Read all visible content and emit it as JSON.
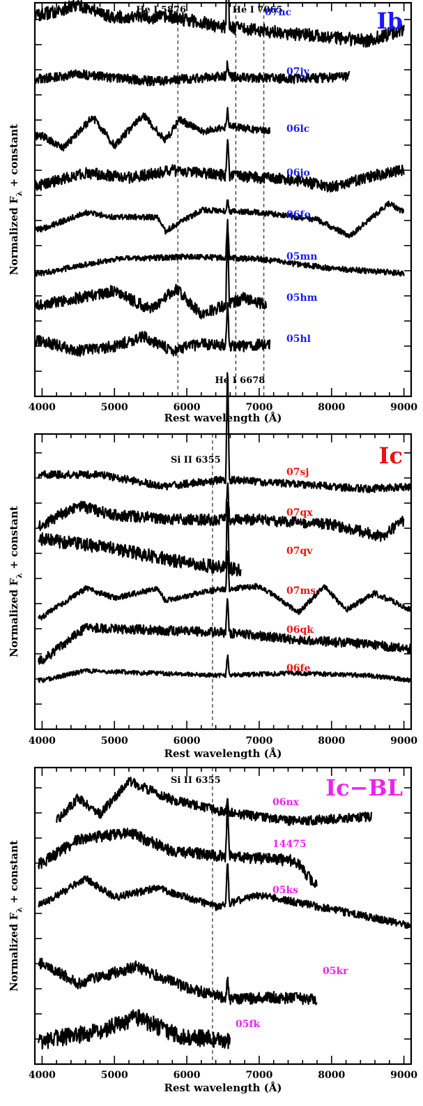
{
  "chart_data": [
    {
      "type": "line",
      "panel_label": "Ib",
      "label_color": "#1a1aff",
      "xlabel": "Rest wavelength (Å)",
      "ylabel_main": "Normalized F",
      "ylabel_sub": "λ",
      "ylabel_tail": " + constant",
      "xlim": [
        3900,
        9100
      ],
      "xticks": [
        "4000",
        "5000",
        "6000",
        "7000",
        "8000",
        "9000"
      ],
      "reference_lines": [
        {
          "label": "He I 5876",
          "wavelength": 5876,
          "label_pos": "top"
        },
        {
          "label": "He I 6678",
          "wavelength": 6678,
          "label_pos": "bottom"
        },
        {
          "label": "He I 7065",
          "wavelength": 7065,
          "label_pos": "top"
        }
      ],
      "series": [
        {
          "name": "07nc",
          "x_range": [
            3900,
            9000
          ],
          "level": 8.0,
          "noise": 0.35,
          "halpha": 4.2,
          "shape": [
            [
              4000,
              0.2
            ],
            [
              4500,
              0.6
            ],
            [
              5000,
              0.1
            ],
            [
              5800,
              0.1
            ],
            [
              6500,
              -0.3
            ],
            [
              7500,
              -0.6
            ],
            [
              8500,
              -0.9
            ],
            [
              9000,
              -0.4
            ]
          ]
        },
        {
          "name": "07jy",
          "x_range": [
            3900,
            8250
          ],
          "level": 7.0,
          "noise": 0.25,
          "halpha": 0.6,
          "shape": [
            [
              4000,
              0.0
            ],
            [
              4500,
              0.2
            ],
            [
              5500,
              -0.1
            ],
            [
              6500,
              0.1
            ],
            [
              7500,
              0.0
            ],
            [
              8250,
              0.1
            ]
          ]
        },
        {
          "name": "06lc",
          "x_range": [
            3900,
            7150
          ],
          "level": 6.1,
          "noise": 0.2,
          "halpha": 0.8,
          "shape": [
            [
              4000,
              0.0
            ],
            [
              4300,
              -0.5
            ],
            [
              4700,
              0.8
            ],
            [
              5000,
              -0.4
            ],
            [
              5400,
              0.9
            ],
            [
              5700,
              -0.2
            ],
            [
              5900,
              0.7
            ],
            [
              6200,
              0.2
            ],
            [
              6600,
              0.4
            ],
            [
              7150,
              0.2
            ]
          ]
        },
        {
          "name": "06jo",
          "x_range": [
            3900,
            9000
          ],
          "level": 5.2,
          "noise": 0.3,
          "halpha": 1.8,
          "shape": [
            [
              4000,
              -0.2
            ],
            [
              4600,
              0.3
            ],
            [
              5200,
              0.1
            ],
            [
              5800,
              0.4
            ],
            [
              6500,
              0.2
            ],
            [
              7500,
              0.0
            ],
            [
              8000,
              -0.3
            ],
            [
              8600,
              0.2
            ],
            [
              9000,
              0.4
            ]
          ]
        },
        {
          "name": "06fo",
          "x_range": [
            3900,
            9000
          ],
          "level": 4.2,
          "noise": 0.15,
          "halpha": 0.5,
          "shape": [
            [
              4000,
              -0.3
            ],
            [
              4600,
              0.4
            ],
            [
              5000,
              0.2
            ],
            [
              5600,
              0.2
            ],
            [
              5700,
              -0.4
            ],
            [
              6200,
              0.5
            ],
            [
              7000,
              0.4
            ],
            [
              7800,
              0.1
            ],
            [
              8250,
              -0.6
            ],
            [
              8800,
              0.8
            ],
            [
              9000,
              0.4
            ]
          ]
        },
        {
          "name": "05mn",
          "x_range": [
            3900,
            9000
          ],
          "level": 3.3,
          "noise": 0.15,
          "halpha": 1.6,
          "shape": [
            [
              4000,
              -0.4
            ],
            [
              5000,
              0.2
            ],
            [
              6000,
              0.3
            ],
            [
              7000,
              0.2
            ],
            [
              8000,
              -0.2
            ],
            [
              9000,
              -0.4
            ]
          ]
        },
        {
          "name": "05hm",
          "x_range": [
            3900,
            7100
          ],
          "level": 2.2,
          "noise": 0.3,
          "halpha": 3.5,
          "shape": [
            [
              4000,
              0.0
            ],
            [
              4500,
              0.3
            ],
            [
              5000,
              0.6
            ],
            [
              5500,
              -0.2
            ],
            [
              5850,
              0.7
            ],
            [
              6200,
              -0.4
            ],
            [
              6800,
              0.3
            ],
            [
              7100,
              0.0
            ]
          ]
        },
        {
          "name": "05hl",
          "x_range": [
            3900,
            7150
          ],
          "level": 1.0,
          "noise": 0.3,
          "halpha": 1.8,
          "shape": [
            [
              4000,
              0.2
            ],
            [
              4500,
              -0.2
            ],
            [
              5000,
              0.0
            ],
            [
              5400,
              0.4
            ],
            [
              5800,
              -0.2
            ],
            [
              6200,
              0.1
            ],
            [
              6800,
              0.0
            ],
            [
              7150,
              0.1
            ]
          ]
        }
      ]
    },
    {
      "type": "line",
      "panel_label": "Ic",
      "label_color": "#ee1111",
      "xlabel": "Rest wavelength (Å)",
      "ylabel_main": "Normalized F",
      "ylabel_sub": "λ",
      "ylabel_tail": " + constant",
      "xlim": [
        3900,
        9100
      ],
      "xticks": [
        "4000",
        "5000",
        "6000",
        "7000",
        "8000",
        "9000"
      ],
      "reference_lines": [
        {
          "label": "Si II 6355",
          "wavelength": 6355,
          "label_pos": "top"
        }
      ],
      "series": [
        {
          "name": "07sj",
          "x_range": [
            3950,
            9100
          ],
          "level": 6.6,
          "noise": 0.2,
          "halpha": 5.0,
          "shape": [
            [
              4000,
              0.2
            ],
            [
              4800,
              0.2
            ],
            [
              5700,
              -0.3
            ],
            [
              6500,
              0.0
            ],
            [
              7500,
              -0.2
            ],
            [
              8500,
              -0.4
            ],
            [
              9100,
              -0.3
            ]
          ]
        },
        {
          "name": "07qx",
          "x_range": [
            3950,
            9000
          ],
          "level": 5.6,
          "noise": 0.3,
          "halpha": 1.8,
          "shape": [
            [
              4000,
              -0.2
            ],
            [
              4500,
              0.6
            ],
            [
              5000,
              0.2
            ],
            [
              6000,
              0.0
            ],
            [
              7000,
              0.0
            ],
            [
              8000,
              -0.2
            ],
            [
              8700,
              -0.7
            ],
            [
              9000,
              0.0
            ]
          ]
        },
        {
          "name": "07qv",
          "x_range": [
            3950,
            6750
          ],
          "level": 4.6,
          "noise": 0.35,
          "halpha": 3.0,
          "shape": [
            [
              4000,
              0.8
            ],
            [
              5000,
              0.4
            ],
            [
              6000,
              -0.2
            ],
            [
              6750,
              -0.5
            ]
          ]
        },
        {
          "name": "07ms",
          "x_range": [
            3950,
            9100
          ],
          "level": 3.4,
          "noise": 0.15,
          "halpha": 1.8,
          "shape": [
            [
              4000,
              -0.8
            ],
            [
              4600,
              0.4
            ],
            [
              5000,
              0.0
            ],
            [
              5600,
              0.4
            ],
            [
              5700,
              -0.1
            ],
            [
              6300,
              0.3
            ],
            [
              7000,
              0.5
            ],
            [
              7550,
              -0.6
            ],
            [
              7900,
              0.5
            ],
            [
              8200,
              -0.5
            ],
            [
              8600,
              0.2
            ],
            [
              9100,
              -0.5
            ]
          ]
        },
        {
          "name": "06qk",
          "x_range": [
            3950,
            9100
          ],
          "level": 2.4,
          "noise": 0.25,
          "halpha": 1.5,
          "shape": [
            [
              4000,
              -1.0
            ],
            [
              4600,
              0.4
            ],
            [
              5500,
              0.3
            ],
            [
              6500,
              0.2
            ],
            [
              7500,
              -0.1
            ],
            [
              8500,
              -0.3
            ],
            [
              9100,
              -0.5
            ]
          ]
        },
        {
          "name": "06fe",
          "x_range": [
            3950,
            9100
          ],
          "level": 1.3,
          "noise": 0.12,
          "halpha": 0.9,
          "shape": [
            [
              4000,
              -0.2
            ],
            [
              4600,
              0.2
            ],
            [
              5500,
              0.1
            ],
            [
              6500,
              0.0
            ],
            [
              7500,
              0.1
            ],
            [
              8500,
              0.0
            ],
            [
              9100,
              -0.2
            ]
          ]
        }
      ]
    },
    {
      "type": "line",
      "panel_label": "Ic−BL",
      "label_color": "#ee22ee",
      "xlabel": "Rest wavelength (Å)",
      "ylabel_main": "Normalized F",
      "ylabel_sub": "λ",
      "ylabel_tail": " + constant",
      "xlim": [
        3900,
        9100
      ],
      "xticks": [
        "4000",
        "5000",
        "6000",
        "7000",
        "8000",
        "9000"
      ],
      "reference_lines": [
        {
          "label": "Si II 6355",
          "wavelength": 6355,
          "label_pos": "top"
        }
      ],
      "series": [
        {
          "name": "06nx",
          "x_range": [
            4200,
            8550
          ],
          "level": 6.4,
          "noise": 0.25,
          "halpha": 0.4,
          "shape": [
            [
              4200,
              -0.5
            ],
            [
              4500,
              0.5
            ],
            [
              4800,
              -0.2
            ],
            [
              5200,
              1.2
            ],
            [
              5800,
              0.4
            ],
            [
              6500,
              -0.1
            ],
            [
              7500,
              -0.5
            ],
            [
              8550,
              -0.3
            ]
          ]
        },
        {
          "name": "14475",
          "x_range": [
            3950,
            7800
          ],
          "level": 5.4,
          "noise": 0.3,
          "halpha": 2.5,
          "shape": [
            [
              4000,
              -0.5
            ],
            [
              4500,
              0.5
            ],
            [
              5200,
              0.8
            ],
            [
              5800,
              0.0
            ],
            [
              6500,
              -0.2
            ],
            [
              7500,
              -0.4
            ],
            [
              7800,
              -1.5
            ]
          ]
        },
        {
          "name": "05ks",
          "x_range": [
            3950,
            9100
          ],
          "level": 4.0,
          "noise": 0.2,
          "halpha": 2.0,
          "shape": [
            [
              4000,
              -0.3
            ],
            [
              4600,
              0.8
            ],
            [
              5000,
              0.0
            ],
            [
              5600,
              0.4
            ],
            [
              6400,
              -0.4
            ],
            [
              7000,
              0.1
            ],
            [
              8000,
              -0.5
            ],
            [
              9100,
              -1.2
            ]
          ]
        },
        {
          "name": "05kr",
          "x_range": [
            3950,
            7800
          ],
          "level": 2.8,
          "noise": 0.3,
          "halpha": 1.0,
          "shape": [
            [
              4000,
              0.6
            ],
            [
              4500,
              -0.2
            ],
            [
              5300,
              0.5
            ],
            [
              6000,
              -0.4
            ],
            [
              6600,
              -0.9
            ],
            [
              7200,
              -0.8
            ],
            [
              7800,
              -0.9
            ]
          ]
        },
        {
          "name": "05fk",
          "x_range": [
            3950,
            6600
          ],
          "level": 1.3,
          "noise": 0.45,
          "halpha": 0.0,
          "shape": [
            [
              4000,
              -0.4
            ],
            [
              4800,
              0.0
            ],
            [
              5300,
              0.6
            ],
            [
              5900,
              -0.2
            ],
            [
              6600,
              -0.4
            ]
          ]
        }
      ]
    }
  ]
}
